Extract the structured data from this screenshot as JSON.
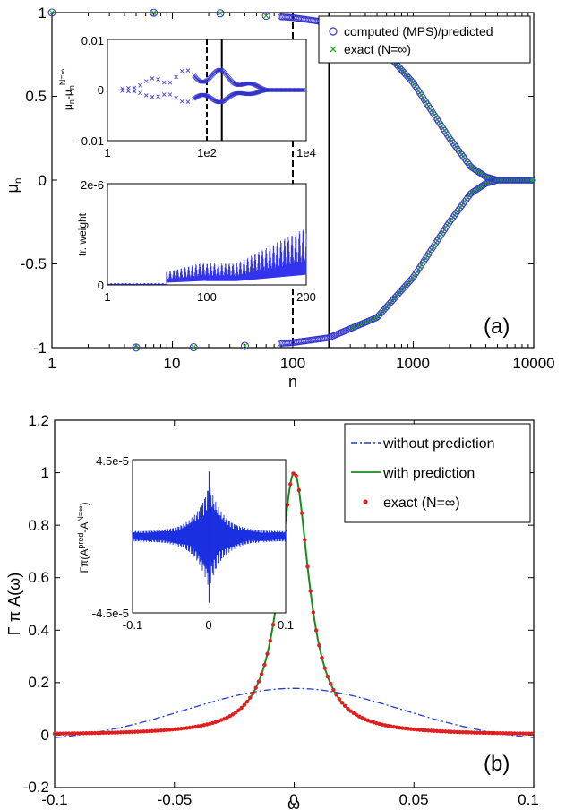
{
  "chart_data": [
    {
      "panel_label": "(a)",
      "type": "scatter",
      "xscale": "log",
      "xlim": [
        1,
        10000
      ],
      "ylim": [
        -1,
        1
      ],
      "xlabel": "n",
      "ylabel": "μ_n",
      "xticks": [
        "1",
        "10",
        "100",
        "1000",
        "10000"
      ],
      "yticks": [
        "-1",
        "-0.5",
        "0",
        "0.5",
        "1"
      ],
      "vlines": [
        {
          "x": 100,
          "style": "dashed"
        },
        {
          "x": 200,
          "style": "solid"
        }
      ],
      "legend": {
        "position": "top-right",
        "entries": [
          "computed (MPS)/predicted",
          "exact (N=∞)"
        ]
      },
      "series": [
        {
          "name": "computed (MPS)/predicted",
          "marker": "o",
          "color": "#3333cc"
        },
        {
          "name": "exact (N=∞)",
          "marker": "x",
          "color": "#22aa22"
        }
      ],
      "curve_points": [
        [
          1,
          1
        ],
        [
          10,
          0.999
        ],
        [
          30,
          0.995
        ],
        [
          100,
          0.97
        ],
        [
          200,
          0.94
        ],
        [
          500,
          0.82
        ],
        [
          1000,
          0.58
        ],
        [
          2000,
          0.25
        ],
        [
          3000,
          0.08
        ],
        [
          4000,
          0.02
        ],
        [
          5000,
          0.0
        ],
        [
          10000,
          0.0
        ]
      ],
      "insets": [
        {
          "type": "scatter",
          "xscale": "log",
          "xlim": [
            1,
            10000
          ],
          "ylim": [
            -0.01,
            0.01
          ],
          "xticks": [
            "1",
            "1e2",
            "1e4"
          ],
          "yticks": [
            "-0.01",
            "0",
            "0.01"
          ],
          "ylabel": "μ_n-μ_n^{N=∞}",
          "vlines": [
            {
              "x": 100,
              "style": "dashed"
            },
            {
              "x": 200,
              "style": "solid"
            }
          ]
        },
        {
          "type": "line",
          "xlim": [
            1,
            200
          ],
          "ylim": [
            0,
            2e-06
          ],
          "xticks": [
            "1",
            "100",
            "200"
          ],
          "yticks": [
            "0",
            "2e-6"
          ],
          "ylabel": "tr. weight"
        }
      ]
    },
    {
      "panel_label": "(b)",
      "type": "line",
      "xlim": [
        -0.1,
        0.1
      ],
      "ylim": [
        -0.2,
        1.2
      ],
      "xlabel": "ω",
      "ylabel": "Γ π A(ω)",
      "xticks": [
        "-0.1",
        "-0.05",
        "0",
        "0.05",
        "0.1"
      ],
      "yticks": [
        "-0.2",
        "0",
        "0.2",
        "0.4",
        "0.6",
        "0.8",
        "1",
        "1.2"
      ],
      "legend": {
        "position": "top-right",
        "entries": [
          "without prediction",
          "with prediction",
          "exact (N=∞)"
        ]
      },
      "series": [
        {
          "name": "without prediction",
          "style": "dash-dot",
          "color": "#1f3fd6",
          "peak": 0.18,
          "width": 0.05
        },
        {
          "name": "with prediction",
          "style": "solid",
          "color": "#1a8a1a",
          "peak": 1.0,
          "width": 0.005
        },
        {
          "name": "exact (N=∞)",
          "style": "markers",
          "color": "#e02020",
          "peak": 1.0,
          "width": 0.005
        }
      ],
      "insets": [
        {
          "type": "line",
          "xlim": [
            -0.1,
            0.1
          ],
          "ylim": [
            -4.5e-05,
            4.5e-05
          ],
          "xticks": [
            "-0.1",
            "0",
            "0.1"
          ],
          "yticks": [
            "-4.5e-5",
            "4.5e-5"
          ],
          "ylabel": "Γπ(A^{pred}-A^{N=∞})"
        }
      ]
    }
  ]
}
